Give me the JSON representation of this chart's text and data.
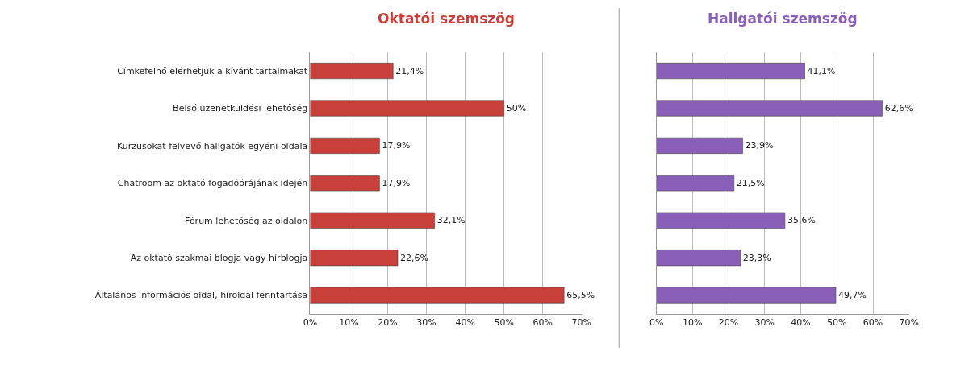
{
  "chart_data": [
    {
      "type": "bar",
      "orientation": "horizontal",
      "title": "Oktatói szemszög",
      "categories": [
        "Címkefelhő elérhetjük a kívánt tartalmakat",
        "Belső üzenetküldési lehetőség",
        "Kurzusokat felvevő hallgatók egyéni oldala",
        "Chatroom az oktató fogadóórájának idején",
        "Fórum lehetőség az oldalon",
        "Az oktató szakmai blogja vagy hírblogja",
        "Általános információs oldal, híroldal fenntartása"
      ],
      "values": [
        21.4,
        50,
        17.9,
        17.9,
        32.1,
        22.6,
        65.5
      ],
      "value_labels": [
        "21,4%",
        "50%",
        "17,9%",
        "17,9%",
        "32,1%",
        "22,6%",
        "65,5%"
      ],
      "color": "#c9403a",
      "xlim": [
        0,
        70
      ],
      "xticks": [
        {
          "value": 0,
          "label": "0%"
        },
        {
          "value": 10,
          "label": "10%"
        },
        {
          "value": 20,
          "label": "20%"
        },
        {
          "value": 30,
          "label": "30%"
        },
        {
          "value": 40,
          "label": "40%"
        },
        {
          "value": 50,
          "label": "50%"
        },
        {
          "value": 60,
          "label": "60%"
        },
        {
          "value": 70,
          "label": "70%"
        }
      ],
      "grid": "x"
    },
    {
      "type": "bar",
      "orientation": "horizontal",
      "title": "Hallgatói szemszög",
      "categories": [
        null,
        null,
        null,
        null,
        null,
        null,
        null
      ],
      "values": [
        41.1,
        62.6,
        23.9,
        21.5,
        35.6,
        23.3,
        49.7
      ],
      "value_labels": [
        "41,1%",
        "62,6%",
        "23,9%",
        "21,5%",
        "35,6%",
        "23,3%",
        "49,7%"
      ],
      "color": "#8a5fb8",
      "xlim": [
        0,
        70
      ],
      "xticks": [
        {
          "value": 0,
          "label": "0%"
        },
        {
          "value": 10,
          "label": "10%"
        },
        {
          "value": 20,
          "label": "20%"
        },
        {
          "value": 30,
          "label": "30%"
        },
        {
          "value": 40,
          "label": "40%"
        },
        {
          "value": 50,
          "label": "50%"
        },
        {
          "value": 60,
          "label": "60%"
        },
        {
          "value": 70,
          "label": "70%"
        }
      ],
      "grid": "x",
      "tick_labels": "x"
    }
  ]
}
